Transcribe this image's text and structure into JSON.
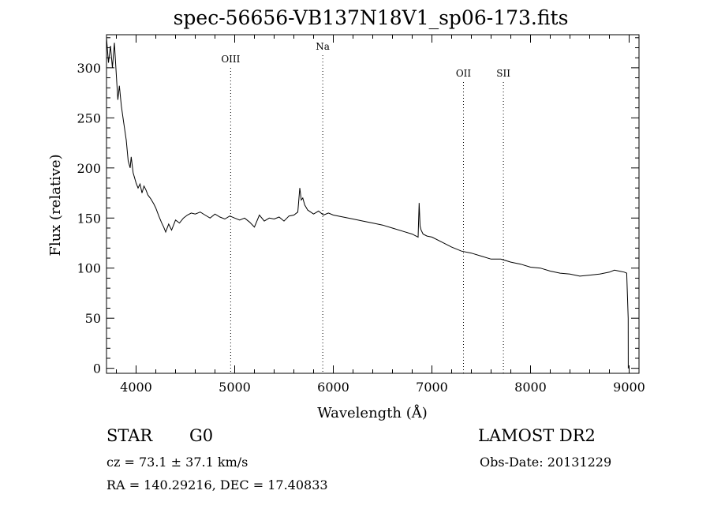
{
  "chart_data": {
    "type": "line",
    "title": "spec-56656-VB137N18V1_sp06-173.fits",
    "xlabel": "Wavelength (Å)",
    "ylabel": "Flux (relative)",
    "xlim": [
      3700,
      9100
    ],
    "ylim": [
      -5,
      333
    ],
    "xticks": [
      4000,
      5000,
      6000,
      7000,
      8000,
      9000
    ],
    "yticks": [
      0,
      50,
      100,
      150,
      200,
      250,
      300
    ],
    "grid": false,
    "line_color": "#000000",
    "lines": [
      {
        "label": "OIII",
        "wavelength": 4959
      },
      {
        "label": "Na",
        "wavelength": 5893
      },
      {
        "label": "OII",
        "wavelength": 7320
      },
      {
        "label": "SII",
        "wavelength": 7725
      }
    ],
    "series": [
      {
        "x": [
          3700,
          3720,
          3740,
          3760,
          3780,
          3800,
          3815,
          3830,
          3850,
          3870,
          3900,
          3920,
          3940,
          3950,
          3970,
          4000,
          4020,
          4040,
          4060,
          4080,
          4100,
          4120,
          4150,
          4180,
          4200,
          4230,
          4260,
          4280,
          4300,
          4330,
          4360,
          4400,
          4440,
          4480,
          4520,
          4560,
          4600,
          4650,
          4700,
          4750,
          4800,
          4850,
          4900,
          4950,
          5000,
          5050,
          5100,
          5150,
          5200,
          5250,
          5300,
          5350,
          5400,
          5450,
          5500,
          5550,
          5600,
          5640,
          5660,
          5675,
          5690,
          5710,
          5740,
          5770,
          5800,
          5850,
          5900,
          5950,
          6000,
          6100,
          6200,
          6300,
          6400,
          6500,
          6600,
          6700,
          6800,
          6860,
          6870,
          6880,
          6890,
          6910,
          6950,
          7000,
          7100,
          7200,
          7300,
          7400,
          7500,
          7600,
          7700,
          7800,
          7900,
          8000,
          8100,
          8200,
          8300,
          8400,
          8500,
          8600,
          8700,
          8800,
          8850,
          8900,
          8950,
          8975,
          8990,
          8991
        ],
        "y": [
          330,
          305,
          322,
          300,
          325,
          292,
          268,
          282,
          262,
          248,
          228,
          207,
          200,
          211,
          195,
          185,
          180,
          184,
          175,
          182,
          178,
          173,
          169,
          164,
          160,
          152,
          145,
          141,
          136,
          144,
          138,
          148,
          145,
          150,
          153,
          155,
          154,
          156,
          153,
          150,
          154,
          151,
          149,
          152,
          150,
          148,
          150,
          146,
          141,
          153,
          147,
          150,
          149,
          151,
          147,
          152,
          153,
          156,
          180,
          168,
          170,
          163,
          158,
          156,
          154,
          157,
          153,
          155,
          153,
          151,
          149,
          147,
          145,
          143,
          140,
          137,
          134,
          131,
          165,
          142,
          138,
          134,
          132,
          131,
          126,
          121,
          117,
          115,
          112,
          109,
          109,
          106,
          104,
          101,
          100,
          97,
          95,
          94,
          92,
          93,
          94,
          96,
          98,
          97,
          96,
          95,
          50,
          0
        ]
      }
    ]
  },
  "labels": {
    "title": "spec-56656-VB137N18V1_sp06-173.fits",
    "object_class": "STAR",
    "subclass": "G0",
    "survey": "LAMOST DR2",
    "cz": "cz = 73.1 ± 37.1 km/s",
    "obs_date": "Obs-Date: 20131229",
    "radec": "RA = 140.29216, DEC =  17.40833"
  }
}
